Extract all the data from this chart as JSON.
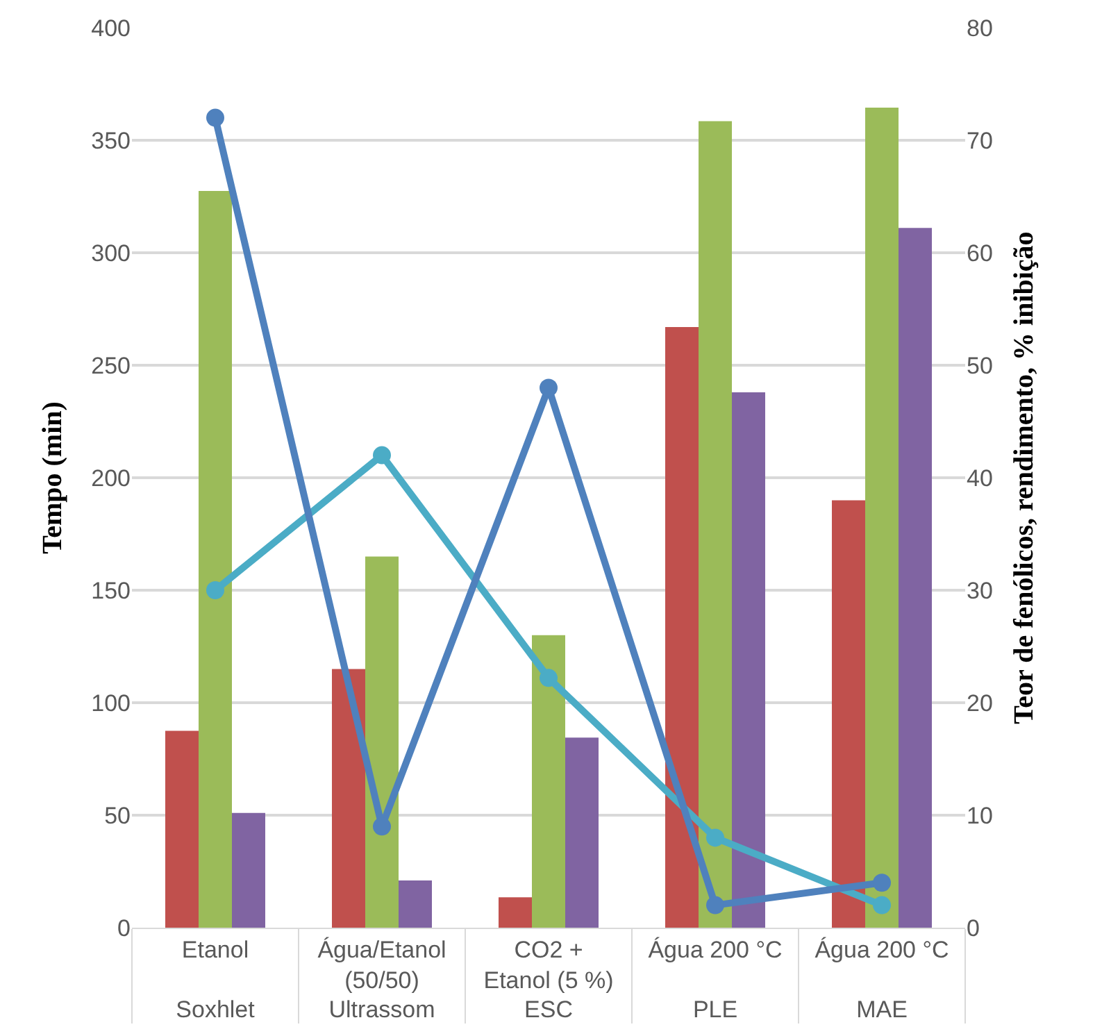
{
  "chart_data": {
    "type": "bar",
    "ylabel": "Tempo (min)",
    "y2label": "Teor de fenólicos, rendimento, % inibição",
    "categories": [
      "Etanol",
      "Água/Etanol\n(50/50)",
      "CO2 +\nEtanol (5 %)",
      "Água 200 °C",
      "Água 200 °C"
    ],
    "annotations": [
      "Soxhlet",
      "Ultrassom",
      "ESC",
      "PLE",
      "MAE"
    ],
    "series": [
      {
        "axis": "y2",
        "color": "#c0504d",
        "values": [
          17.5,
          23.0,
          2.7,
          53.4,
          38.0
        ]
      },
      {
        "axis": "y2",
        "color": "#9bbb59",
        "values": [
          65.5,
          33.0,
          26.0,
          71.7,
          72.9
        ]
      },
      {
        "axis": "y2",
        "color": "#8064a2",
        "values": [
          10.2,
          4.2,
          16.9,
          47.6,
          62.2
        ]
      },
      {
        "type": "line",
        "axis": "y",
        "color": "#4f81bd",
        "values": [
          360,
          45,
          240,
          10,
          20
        ]
      },
      {
        "type": "line",
        "axis": "y2",
        "color": "#4bacc6",
        "values": [
          30,
          42,
          22.2,
          8,
          2
        ]
      }
    ],
    "ylim": [
      0,
      400
    ],
    "yticks": [
      0,
      50,
      100,
      150,
      200,
      250,
      300,
      350,
      400
    ],
    "y2lim": [
      0,
      80
    ],
    "y2ticks": [
      0,
      10,
      20,
      30,
      40,
      50,
      60,
      70,
      80
    ],
    "grid": "y",
    "marker": "circle",
    "line_style": "solid"
  }
}
